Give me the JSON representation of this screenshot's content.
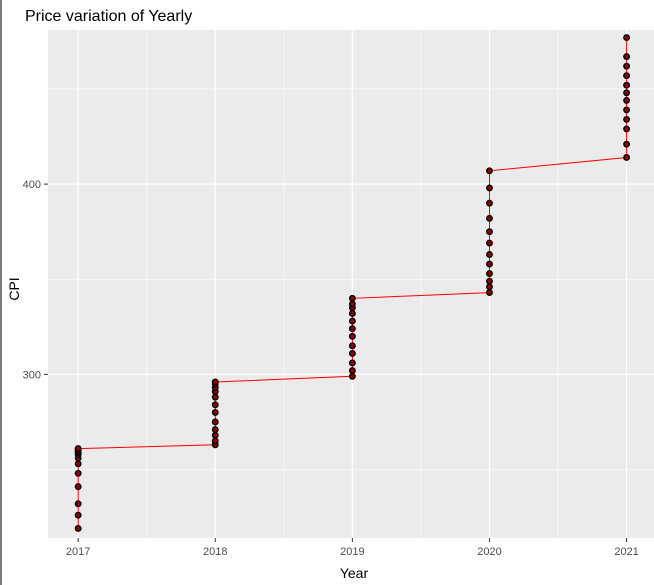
{
  "chart_data": {
    "type": "line",
    "title": "Price variation of  Yearly",
    "xlabel": "Year",
    "ylabel": "CPI",
    "xlim": [
      2016.78,
      2021.2
    ],
    "ylim": [
      214,
      481
    ],
    "x_ticks": [
      2017,
      2018,
      2019,
      2020,
      2021
    ],
    "x_tick_labels": [
      "2017",
      "2018",
      "2019",
      "2020",
      "2021"
    ],
    "y_ticks": [
      300,
      400
    ],
    "y_tick_labels": [
      "300",
      "400"
    ],
    "grid": true,
    "legend": "none",
    "series": [
      {
        "line_color": "#ff0000",
        "point_fill": "#8b0000",
        "point_stroke": "#000000",
        "x": [
          2017,
          2017,
          2017,
          2017,
          2017,
          2017,
          2017,
          2017,
          2017,
          2017,
          2017,
          2017,
          2018,
          2018,
          2018,
          2018,
          2018,
          2018,
          2018,
          2018,
          2018,
          2018,
          2018,
          2018,
          2019,
          2019,
          2019,
          2019,
          2019,
          2019,
          2019,
          2019,
          2019,
          2019,
          2019,
          2019,
          2020,
          2020,
          2020,
          2020,
          2020,
          2020,
          2020,
          2020,
          2020,
          2020,
          2020,
          2020,
          2021,
          2021,
          2021,
          2021,
          2021,
          2021,
          2021,
          2021,
          2021,
          2021,
          2021,
          2021
        ],
        "y": [
          219,
          226,
          232,
          241,
          248,
          253,
          256,
          258,
          259,
          260,
          260,
          261,
          263,
          265,
          268,
          271,
          275,
          280,
          284,
          288,
          291,
          293,
          295,
          296,
          299,
          302,
          306,
          311,
          315,
          320,
          324,
          328,
          332,
          335,
          337,
          340,
          343,
          346,
          349,
          353,
          358,
          363,
          369,
          375,
          382,
          390,
          398,
          407,
          414,
          421,
          429,
          434,
          439,
          444,
          448,
          452,
          457,
          462,
          467,
          477
        ]
      }
    ]
  }
}
